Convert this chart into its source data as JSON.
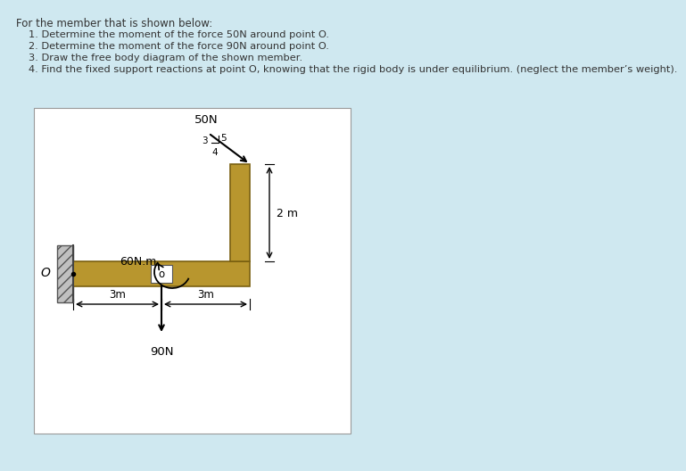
{
  "bg_color": "#cfe8f0",
  "panel_color": "#ffffff",
  "member_color": "#b8962e",
  "member_edge_color": "#7a6010",
  "text_color": "#333333",
  "title_text": "For the member that is shown below:",
  "items": [
    "1. Determine the moment of the force 50N around point O.",
    "2. Determine the moment of the force 90N around point O.",
    "3. Draw the free body diagram of the shown member.",
    "4. Find the fixed support reactions at point O, knowing that the rigid body is under equilibrium. (neglect the member’s weight)."
  ],
  "O_label": "O",
  "o_label": "o",
  "force_50N": "50N",
  "force_90N": "90N",
  "moment_label": "60N.m",
  "dist_3m_left": "3m",
  "dist_3m_right": "3m",
  "dist_2m": "2 m",
  "ratio_3": "3",
  "ratio_4": "4",
  "ratio_5": "5",
  "wall_hatch_color": "#bbbbbb",
  "wall_line_color": "#444444"
}
